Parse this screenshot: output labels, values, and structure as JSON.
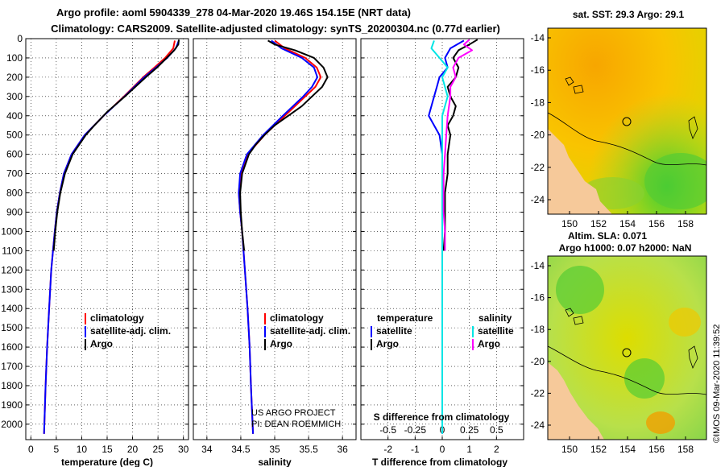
{
  "header": {
    "line1": "Argo profile: aoml 5904339_278 04-Mar-2020 19.46S 154.15E (NRT data)",
    "line2": "Climatology: CARS2009. Satellite-adjusted climatology: synTS_20200304.nc (0.77d earlier)"
  },
  "colors": {
    "climatology": "#ff0000",
    "satellite": "#0000ff",
    "argo": "#000000",
    "sat_salinity": "#00e5e5",
    "argo_salinity": "#ff00ff"
  },
  "chart_data": [
    {
      "type": "line",
      "name": "temperature",
      "xlabel": "temperature (deg C)",
      "ylabel": "",
      "xlim": [
        -1,
        31
      ],
      "ylim": [
        0,
        2080
      ],
      "xticks": [
        0,
        5,
        10,
        15,
        20,
        25,
        30
      ],
      "yticks": [
        0,
        100,
        200,
        300,
        400,
        500,
        600,
        700,
        800,
        900,
        1000,
        1100,
        1200,
        1300,
        1400,
        1500,
        1600,
        1700,
        1800,
        1900,
        2000
      ],
      "legend": [
        "climatology",
        "satellite-adj. clim.",
        "Argo"
      ],
      "series": [
        {
          "name": "climatology",
          "depth": [
            10,
            50,
            100,
            150,
            200,
            300,
            400,
            500,
            600,
            700,
            800,
            900,
            1000,
            1200,
            1400,
            1600,
            1800,
            2050
          ],
          "values": [
            28.3,
            28.0,
            26.4,
            24.3,
            22.1,
            18.3,
            14.3,
            10.6,
            8.0,
            6.5,
            5.7,
            5.1,
            4.7,
            4.0,
            3.6,
            3.2,
            2.9,
            2.6
          ]
        },
        {
          "name": "satellite-adj. clim.",
          "depth": [
            10,
            50,
            100,
            150,
            200,
            300,
            400,
            500,
            600,
            700,
            800,
            900,
            1000,
            1200,
            1400,
            1600,
            1800,
            2050
          ],
          "values": [
            29.1,
            28.5,
            26.8,
            24.6,
            22.3,
            18.4,
            14.3,
            10.6,
            8.0,
            6.5,
            5.7,
            5.1,
            4.7,
            4.0,
            3.6,
            3.2,
            2.9,
            2.6
          ]
        },
        {
          "name": "Argo",
          "depth": [
            5,
            30,
            60,
            100,
            150,
            200,
            300,
            380,
            450,
            500,
            600,
            700,
            800,
            900,
            1000,
            1100
          ],
          "values": [
            29.1,
            29.0,
            28.2,
            26.7,
            24.8,
            22.6,
            18.5,
            15.0,
            12.5,
            10.8,
            8.2,
            6.7,
            5.8,
            5.2,
            4.8,
            4.5
          ]
        }
      ]
    },
    {
      "type": "line",
      "name": "salinity",
      "xlabel": "salinity",
      "xlim": [
        33.8,
        36.2
      ],
      "ylim": [
        0,
        2080
      ],
      "xticks": [
        34,
        34.5,
        35,
        35.5,
        36
      ],
      "legend": [
        "climatology",
        "satellite-adj. clim.",
        "Argo"
      ],
      "annotation": [
        "US ARGO PROJECT",
        "PI: DEAN ROEMMICH"
      ],
      "series": [
        {
          "name": "climatology",
          "depth": [
            10,
            50,
            100,
            150,
            200,
            250,
            300,
            400,
            500,
            600,
            700,
            800,
            900,
            1000,
            1200,
            1400,
            1600,
            1800,
            2050
          ],
          "values": [
            35.0,
            35.15,
            35.45,
            35.62,
            35.68,
            35.6,
            35.45,
            35.15,
            34.85,
            34.6,
            34.5,
            34.47,
            34.49,
            34.52,
            34.56,
            34.6,
            34.63,
            34.65,
            34.68
          ]
        },
        {
          "name": "satellite-adj. clim.",
          "depth": [
            10,
            50,
            100,
            150,
            200,
            250,
            300,
            400,
            500,
            600,
            700,
            800,
            900,
            1000,
            1200,
            1400,
            1600,
            1800,
            2050
          ],
          "values": [
            34.95,
            35.1,
            35.4,
            35.58,
            35.63,
            35.55,
            35.42,
            35.12,
            34.83,
            34.59,
            34.49,
            34.47,
            34.49,
            34.52,
            34.56,
            34.6,
            34.63,
            34.65,
            34.68
          ]
        },
        {
          "name": "Argo",
          "depth": [
            10,
            30,
            60,
            100,
            150,
            200,
            250,
            300,
            350,
            400,
            450,
            500,
            550,
            600,
            700,
            800,
            900,
            1000,
            1100
          ],
          "values": [
            34.9,
            35.0,
            35.3,
            35.58,
            35.72,
            35.78,
            35.7,
            35.55,
            35.4,
            35.2,
            35.0,
            34.85,
            34.72,
            34.62,
            34.52,
            34.49,
            34.5,
            34.52,
            34.55
          ]
        }
      ]
    },
    {
      "type": "line",
      "name": "difference",
      "xlabel": "T difference from climatology",
      "top_xlabel": "S difference from climatology",
      "xlim": [
        -3,
        3
      ],
      "ylim": [
        0,
        2080
      ],
      "xticks": [
        -2,
        -1,
        0,
        1,
        2
      ],
      "top_xticks": [
        {
          "label": "-0.5",
          "t_pos": -2.0
        },
        {
          "label": "-0.25",
          "t_pos": -1.0
        },
        {
          "label": "0",
          "t_pos": 0
        },
        {
          "label": "0.25",
          "t_pos": 1.0
        },
        {
          "label": "0.5",
          "t_pos": 2.0
        }
      ],
      "legend_titles": [
        "temperature",
        "salinity"
      ],
      "legend": [
        "satellite",
        "Argo",
        "satellite",
        "Argo"
      ],
      "series": [
        {
          "name": "T satellite",
          "depth": [
            10,
            50,
            100,
            150,
            200,
            250,
            300,
            400,
            500,
            600,
            700,
            800,
            900,
            1000,
            1100,
            1300,
            1600,
            2050
          ],
          "values": [
            0.8,
            0.3,
            0.1,
            0.2,
            -0.1,
            -0.2,
            -0.3,
            -0.5,
            -0.1,
            0,
            0,
            0,
            0,
            0,
            0,
            0,
            0,
            0
          ]
        },
        {
          "name": "T Argo",
          "depth": [
            5,
            30,
            60,
            100,
            150,
            200,
            250,
            300,
            350,
            400,
            450,
            500,
            600,
            700,
            800,
            900,
            1000,
            1100
          ],
          "values": [
            1.3,
            1.0,
            0.6,
            0.4,
            0.6,
            0.5,
            0.2,
            0.3,
            0.5,
            0.4,
            0.2,
            0.3,
            0.2,
            0.2,
            0.1,
            0.1,
            0.1,
            0.05
          ]
        },
        {
          "name": "S satellite",
          "depth": [
            10,
            50,
            100,
            150,
            200,
            300,
            400,
            500,
            700,
            1000,
            1500,
            2050
          ],
          "values": [
            -0.3,
            -0.4,
            -0.1,
            0.2,
            0.0,
            0.2,
            0.0,
            0.0,
            0.0,
            0.0,
            0.0,
            0.0
          ]
        },
        {
          "name": "S Argo",
          "depth": [
            5,
            30,
            60,
            100,
            150,
            200,
            250,
            300,
            400,
            500,
            600,
            700,
            800,
            900,
            1000,
            1100
          ],
          "values": [
            1.0,
            0.8,
            1.1,
            0.6,
            0.4,
            0.5,
            0.3,
            0.3,
            0.2,
            0.15,
            0.1,
            0.05,
            0.05,
            0.05,
            0.1,
            0.1
          ]
        }
      ]
    }
  ],
  "maps": [
    {
      "title": "sat. SST: 29.3  Argo: 29.1",
      "lat_ticks": [
        "-14",
        "-16",
        "-18",
        "-20",
        "-22",
        "-24"
      ],
      "lon_ticks": [
        "150",
        "152",
        "154",
        "156",
        "158"
      ]
    },
    {
      "title_line1": "Altim. SLA: 0.071",
      "title_line2": "Argo h1000: 0.07 h2000: NaN",
      "lat_ticks": [
        "-14",
        "-16",
        "-18",
        "-20",
        "-22",
        "-24"
      ],
      "lon_ticks": [
        "150",
        "152",
        "154",
        "156",
        "158"
      ]
    }
  ],
  "footer": {
    "credit": "©IMOS 09-Mar-2020 11:39:52"
  }
}
